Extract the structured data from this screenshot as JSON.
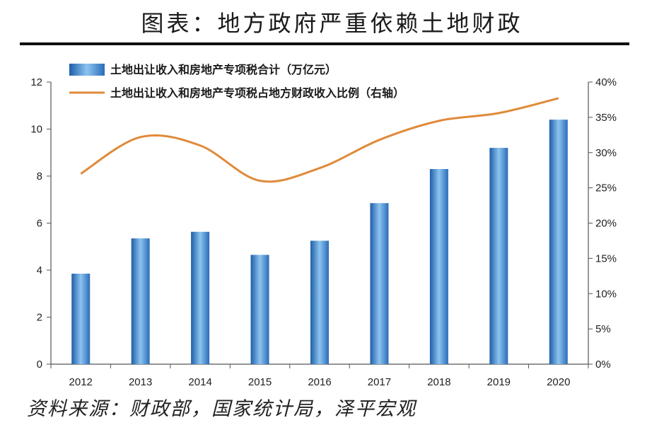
{
  "page": {
    "title": "图表：地方政府严重依赖土地财政",
    "source": "资料来源：财政部，国家统计局，泽平宏观"
  },
  "chart_data": {
    "type": "bar",
    "categories": [
      "2012",
      "2013",
      "2014",
      "2015",
      "2016",
      "2017",
      "2018",
      "2019",
      "2020"
    ],
    "y_left": {
      "ylim": [
        0,
        12
      ],
      "ticks": [
        0,
        2,
        4,
        6,
        8,
        10,
        12
      ],
      "tick_labels": [
        "0",
        "2",
        "4",
        "6",
        "8",
        "10",
        "12"
      ]
    },
    "y_right": {
      "ylim": [
        0,
        40
      ],
      "ticks": [
        0,
        5,
        10,
        15,
        20,
        25,
        30,
        35,
        40
      ],
      "tick_labels": [
        "0%",
        "5%",
        "10%",
        "15%",
        "20%",
        "25%",
        "30%",
        "35%",
        "40%"
      ]
    },
    "series": [
      {
        "name": "土地出让收入和房地产专项税合计（万亿元）",
        "type": "bar",
        "axis": "left",
        "values": [
          3.85,
          5.35,
          5.63,
          4.65,
          5.25,
          6.85,
          8.3,
          9.2,
          10.4
        ],
        "color": "#4a8fd0"
      },
      {
        "name": "土地出让收入和房地产专项税占地方财政收入比例（右轴）",
        "type": "line",
        "axis": "right",
        "values": [
          27.0,
          32.2,
          31.0,
          26.0,
          27.8,
          31.8,
          34.5,
          35.6,
          37.7
        ],
        "color": "#e08a3a"
      }
    ],
    "legend": "top-left",
    "grid": false
  }
}
